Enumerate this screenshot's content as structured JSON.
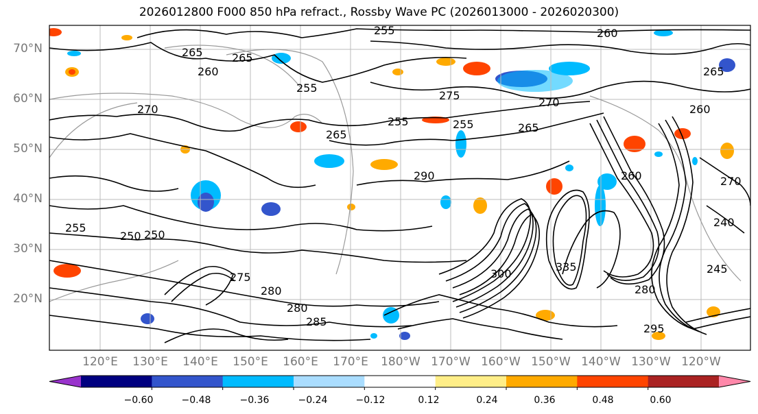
{
  "title": "2026012800 F000 850 hPa refract., Rossby Wave PC (2026013000 - 2026020300)",
  "lat_labels": [
    "70°N",
    "60°N",
    "50°N",
    "40°N",
    "30°N",
    "20°N"
  ],
  "lon_labels": [
    "120°E",
    "130°E",
    "140°E",
    "150°E",
    "160°E",
    "170°E",
    "180°W",
    "170°W",
    "160°W",
    "150°W",
    "140°W",
    "130°W",
    "120°W"
  ],
  "contour_labels": [
    "255",
    "260",
    "265",
    "260",
    "265",
    "255",
    "270",
    "275",
    "255",
    "255",
    "265",
    "270",
    "265",
    "260",
    "255",
    "250",
    "275",
    "280",
    "290",
    "300",
    "335",
    "295",
    "280",
    "245",
    "240",
    "265",
    "260",
    "270",
    "280",
    "285",
    "250"
  ],
  "colorbar": {
    "tick_labels": [
      "−0.60",
      "−0.48",
      "−0.36",
      "−0.24",
      "−0.12",
      "0.12",
      "0.24",
      "0.36",
      "0.48",
      "0.60"
    ],
    "colors": [
      "#9933cc",
      "#000080",
      "#3355cc",
      "#00bbff",
      "#aaddff",
      "#ffffff",
      "#ffee88",
      "#ffaa00",
      "#ff4400",
      "#aa2222",
      "#ff88aa"
    ]
  },
  "colors": {
    "contour": "#000000",
    "grid": "#bbbbbb",
    "coast": "#999999",
    "axis_label": "#777777"
  }
}
